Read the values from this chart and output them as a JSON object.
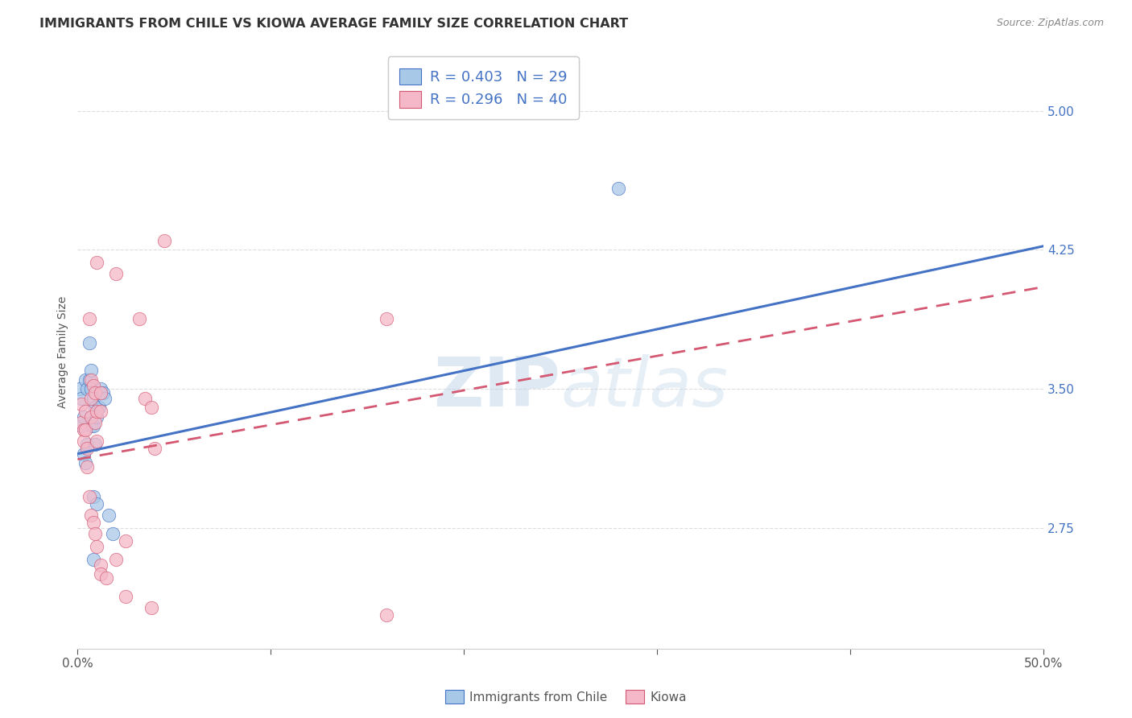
{
  "title": "IMMIGRANTS FROM CHILE VS KIOWA AVERAGE FAMILY SIZE CORRELATION CHART",
  "source": "Source: ZipAtlas.com",
  "ylabel": "Average Family Size",
  "yticks": [
    2.75,
    3.5,
    4.25,
    5.0
  ],
  "xlim": [
    0.0,
    0.5
  ],
  "ylim": [
    2.1,
    5.3
  ],
  "watermark": "ZIPatlas",
  "legend_blue_r": "0.403",
  "legend_blue_n": "29",
  "legend_pink_r": "0.296",
  "legend_pink_n": "40",
  "legend_labels": [
    "Immigrants from Chile",
    "Kiowa"
  ],
  "blue_color": "#a8c8e8",
  "blue_line_color": "#4472c4",
  "pink_color": "#f4b8c8",
  "pink_line_color": "#d45872",
  "blue_scatter": [
    [
      0.001,
      3.5
    ],
    [
      0.002,
      3.45
    ],
    [
      0.002,
      3.3
    ],
    [
      0.003,
      3.35
    ],
    [
      0.003,
      3.15
    ],
    [
      0.004,
      3.1
    ],
    [
      0.004,
      3.55
    ],
    [
      0.005,
      3.5
    ],
    [
      0.005,
      3.2
    ],
    [
      0.006,
      3.75
    ],
    [
      0.006,
      3.55
    ],
    [
      0.007,
      3.6
    ],
    [
      0.007,
      3.5
    ],
    [
      0.007,
      3.3
    ],
    [
      0.008,
      3.45
    ],
    [
      0.008,
      3.3
    ],
    [
      0.009,
      3.4
    ],
    [
      0.009,
      3.2
    ],
    [
      0.01,
      3.35
    ],
    [
      0.011,
      3.4
    ],
    [
      0.012,
      3.5
    ],
    [
      0.013,
      3.48
    ],
    [
      0.014,
      3.45
    ],
    [
      0.008,
      2.92
    ],
    [
      0.01,
      2.88
    ],
    [
      0.016,
      2.82
    ],
    [
      0.018,
      2.72
    ],
    [
      0.008,
      2.58
    ],
    [
      0.28,
      4.58
    ]
  ],
  "pink_scatter": [
    [
      0.002,
      3.42
    ],
    [
      0.002,
      3.32
    ],
    [
      0.003,
      3.28
    ],
    [
      0.003,
      3.22
    ],
    [
      0.004,
      3.38
    ],
    [
      0.004,
      3.28
    ],
    [
      0.005,
      3.18
    ],
    [
      0.005,
      3.08
    ],
    [
      0.006,
      3.88
    ],
    [
      0.007,
      3.55
    ],
    [
      0.007,
      3.45
    ],
    [
      0.007,
      3.35
    ],
    [
      0.008,
      3.52
    ],
    [
      0.009,
      3.48
    ],
    [
      0.009,
      3.32
    ],
    [
      0.01,
      3.38
    ],
    [
      0.01,
      3.22
    ],
    [
      0.012,
      3.48
    ],
    [
      0.012,
      3.38
    ],
    [
      0.006,
      2.92
    ],
    [
      0.007,
      2.82
    ],
    [
      0.008,
      2.78
    ],
    [
      0.009,
      2.72
    ],
    [
      0.01,
      2.65
    ],
    [
      0.012,
      2.55
    ],
    [
      0.012,
      2.5
    ],
    [
      0.01,
      4.18
    ],
    [
      0.02,
      4.12
    ],
    [
      0.045,
      4.3
    ],
    [
      0.032,
      3.88
    ],
    [
      0.035,
      3.45
    ],
    [
      0.038,
      3.4
    ],
    [
      0.04,
      3.18
    ],
    [
      0.16,
      3.88
    ],
    [
      0.025,
      2.38
    ],
    [
      0.038,
      2.32
    ],
    [
      0.16,
      2.28
    ],
    [
      0.025,
      2.68
    ],
    [
      0.02,
      2.58
    ],
    [
      0.015,
      2.48
    ]
  ],
  "blue_trendline": [
    [
      0.0,
      3.15
    ],
    [
      0.5,
      4.27
    ]
  ],
  "pink_trendline": [
    [
      0.0,
      3.12
    ],
    [
      0.5,
      4.05
    ]
  ],
  "background_color": "#ffffff",
  "grid_color": "#dddddd"
}
